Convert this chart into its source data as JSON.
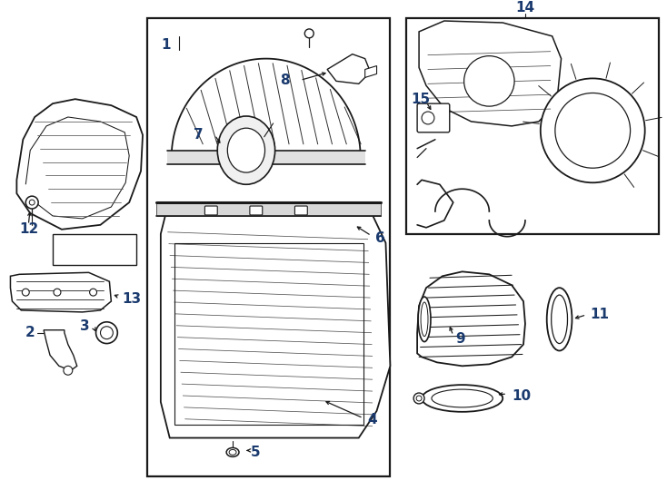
{
  "background_color": "#ffffff",
  "line_color": "#1a1a1a",
  "fig_width": 7.34,
  "fig_height": 5.4,
  "dpi": 100,
  "label_fontsize": 11,
  "label_color": "#1a3a6e"
}
